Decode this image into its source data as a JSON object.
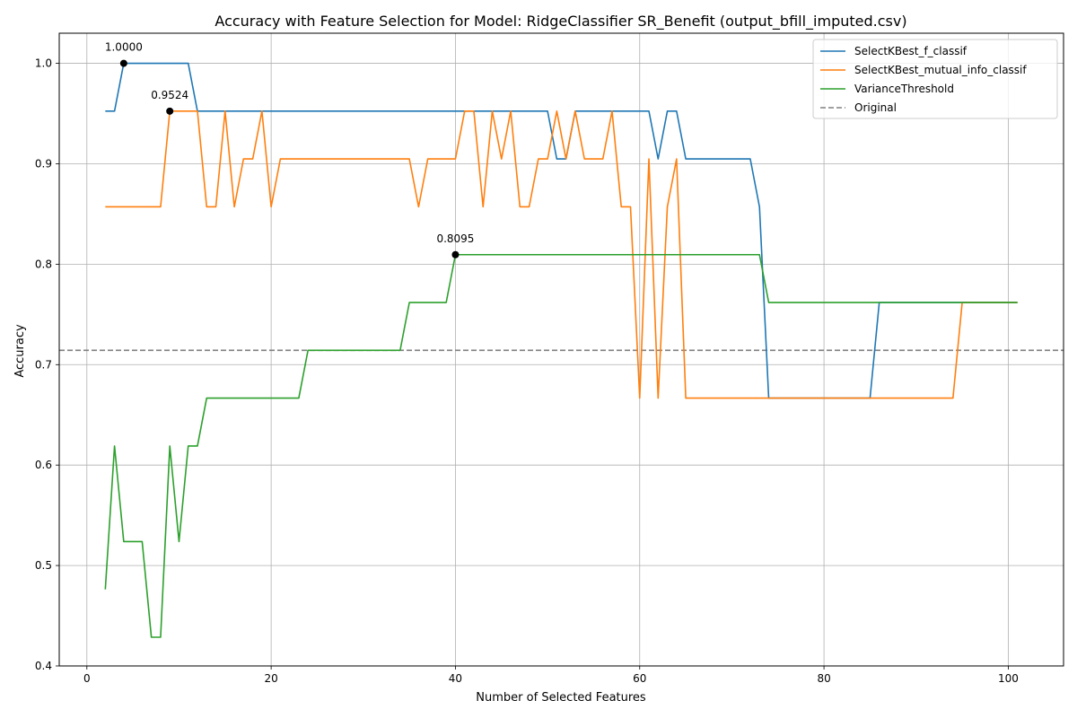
{
  "chart_data": {
    "type": "line",
    "title": "Accuracy with Feature Selection for Model: RidgeClassifier SR_Benefit (output_bfill_imputed.csv)",
    "xlabel": "Number of Selected Features",
    "ylabel": "Accuracy",
    "xlim": [
      -3,
      106
    ],
    "ylim": [
      0.4,
      1.03
    ],
    "xticks": [
      0,
      20,
      40,
      60,
      80,
      100
    ],
    "xtick_labels": [
      "0",
      "20",
      "40",
      "60",
      "80",
      "100"
    ],
    "yticks": [
      0.4,
      0.5,
      0.6,
      0.7,
      0.8,
      0.9,
      1.0
    ],
    "ytick_labels": [
      "0.4",
      "0.5",
      "0.6",
      "0.7",
      "0.8",
      "0.9",
      "1.0"
    ],
    "grid": true,
    "legend_position": "top-right",
    "series": [
      {
        "name": "SelectKBest_f_classif",
        "color": "#1f77b4",
        "points": [
          [
            2,
            0.9524
          ],
          [
            3,
            0.9524
          ],
          [
            4,
            1.0
          ],
          [
            5,
            1.0
          ],
          [
            6,
            1.0
          ],
          [
            7,
            1.0
          ],
          [
            8,
            1.0
          ],
          [
            9,
            1.0
          ],
          [
            10,
            1.0
          ],
          [
            11,
            1.0
          ],
          [
            12,
            0.9524
          ],
          [
            13,
            0.9524
          ],
          [
            20,
            0.9524
          ],
          [
            30,
            0.9524
          ],
          [
            40,
            0.9524
          ],
          [
            50,
            0.9524
          ],
          [
            51,
            0.9048
          ],
          [
            52,
            0.9048
          ],
          [
            53,
            0.9524
          ],
          [
            54,
            0.9524
          ],
          [
            61,
            0.9524
          ],
          [
            62,
            0.9048
          ],
          [
            63,
            0.9524
          ],
          [
            64,
            0.9524
          ],
          [
            65,
            0.9048
          ],
          [
            70,
            0.9048
          ],
          [
            72,
            0.9048
          ],
          [
            73,
            0.8571
          ],
          [
            74,
            0.6667
          ],
          [
            75,
            0.6667
          ],
          [
            85,
            0.6667
          ],
          [
            86,
            0.7619
          ],
          [
            90,
            0.7619
          ],
          [
            101,
            0.7619
          ]
        ]
      },
      {
        "name": "SelectKBest_mutual_info_classif",
        "color": "#ff7f0e",
        "points": [
          [
            2,
            0.8571
          ],
          [
            3,
            0.8571
          ],
          [
            4,
            0.8571
          ],
          [
            5,
            0.8571
          ],
          [
            6,
            0.8571
          ],
          [
            7,
            0.8571
          ],
          [
            8,
            0.8571
          ],
          [
            9,
            0.9524
          ],
          [
            10,
            0.9524
          ],
          [
            11,
            0.9524
          ],
          [
            12,
            0.9524
          ],
          [
            13,
            0.8571
          ],
          [
            14,
            0.8571
          ],
          [
            15,
            0.9524
          ],
          [
            16,
            0.8571
          ],
          [
            17,
            0.9048
          ],
          [
            18,
            0.9048
          ],
          [
            19,
            0.9524
          ],
          [
            20,
            0.8571
          ],
          [
            21,
            0.9048
          ],
          [
            25,
            0.9048
          ],
          [
            30,
            0.9048
          ],
          [
            35,
            0.9048
          ],
          [
            36,
            0.8571
          ],
          [
            37,
            0.9048
          ],
          [
            38,
            0.9048
          ],
          [
            39,
            0.9048
          ],
          [
            40,
            0.9048
          ],
          [
            41,
            0.9524
          ],
          [
            42,
            0.9524
          ],
          [
            43,
            0.8571
          ],
          [
            44,
            0.9524
          ],
          [
            45,
            0.9048
          ],
          [
            46,
            0.9524
          ],
          [
            47,
            0.8571
          ],
          [
            48,
            0.8571
          ],
          [
            49,
            0.9048
          ],
          [
            50,
            0.9048
          ],
          [
            51,
            0.9524
          ],
          [
            52,
            0.9048
          ],
          [
            53,
            0.9524
          ],
          [
            54,
            0.9048
          ],
          [
            55,
            0.9048
          ],
          [
            56,
            0.9048
          ],
          [
            57,
            0.9524
          ],
          [
            58,
            0.8571
          ],
          [
            59,
            0.8571
          ],
          [
            60,
            0.6667
          ],
          [
            61,
            0.9048
          ],
          [
            62,
            0.6667
          ],
          [
            63,
            0.8571
          ],
          [
            64,
            0.9048
          ],
          [
            65,
            0.6667
          ],
          [
            70,
            0.6667
          ],
          [
            80,
            0.6667
          ],
          [
            90,
            0.6667
          ],
          [
            94,
            0.6667
          ],
          [
            95,
            0.7619
          ],
          [
            101,
            0.7619
          ]
        ]
      },
      {
        "name": "VarianceThreshold",
        "color": "#2ca02c",
        "points": [
          [
            2,
            0.4762
          ],
          [
            3,
            0.619
          ],
          [
            4,
            0.5238
          ],
          [
            5,
            0.5238
          ],
          [
            6,
            0.5238
          ],
          [
            7,
            0.4286
          ],
          [
            8,
            0.4286
          ],
          [
            9,
            0.619
          ],
          [
            10,
            0.5238
          ],
          [
            11,
            0.619
          ],
          [
            12,
            0.619
          ],
          [
            13,
            0.6667
          ],
          [
            20,
            0.6667
          ],
          [
            23,
            0.6667
          ],
          [
            24,
            0.7143
          ],
          [
            30,
            0.7143
          ],
          [
            34,
            0.7143
          ],
          [
            35,
            0.7619
          ],
          [
            39,
            0.7619
          ],
          [
            40,
            0.8095
          ],
          [
            50,
            0.8095
          ],
          [
            60,
            0.8095
          ],
          [
            73,
            0.8095
          ],
          [
            74,
            0.7619
          ],
          [
            80,
            0.7619
          ],
          [
            90,
            0.7619
          ],
          [
            101,
            0.7619
          ]
        ]
      },
      {
        "name": "Original",
        "color": "#808080",
        "dashed": true,
        "value": 0.7143
      }
    ],
    "annotations": [
      {
        "x": 4,
        "y": 1.0,
        "text": "1.0000"
      },
      {
        "x": 9,
        "y": 0.9524,
        "text": "0.9524"
      },
      {
        "x": 40,
        "y": 0.8095,
        "text": "0.8095"
      }
    ]
  }
}
